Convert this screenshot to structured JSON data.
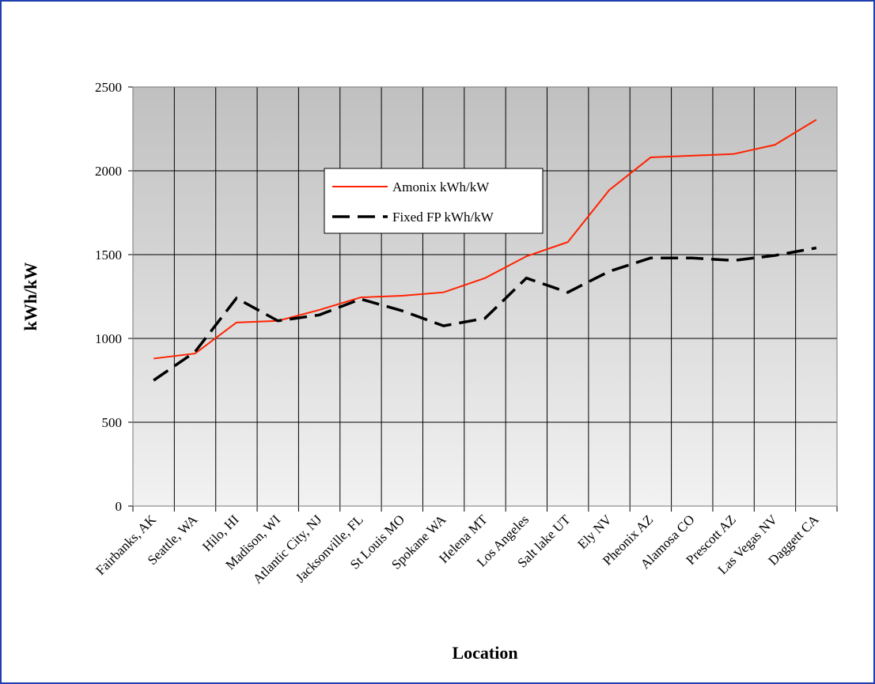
{
  "chart_data": {
    "type": "line",
    "x_label": "Location",
    "y_label": "kWh/kW",
    "categories": [
      "Fairbanks, AK",
      "Seattle, WA",
      "Hilo, HI",
      "Madison, WI",
      "Atlantic City, NJ",
      "Jacksonville, FL",
      "St Louis MO",
      "Spokane WA",
      "Helena MT",
      "Los Angeles",
      "Salt lake UT",
      "Ely NV",
      "Pheonix AZ",
      "Alamosa CO",
      "Prescott AZ",
      "Las Vegas NV",
      "Daggett CA"
    ],
    "series": [
      {
        "name": "Amonix kWh/kW",
        "color": "#ff2200",
        "dash": "solid",
        "values": [
          880,
          910,
          1095,
          1105,
          1170,
          1245,
          1255,
          1275,
          1360,
          1490,
          1575,
          1885,
          2080,
          2090,
          2100,
          2155,
          2305
        ]
      },
      {
        "name": "Fixed FP kWh/kW",
        "color": "#000000",
        "dash": "dashed",
        "values": [
          750,
          920,
          1240,
          1105,
          1140,
          1235,
          1165,
          1075,
          1120,
          1360,
          1275,
          1400,
          1480,
          1480,
          1465,
          1495,
          1540
        ]
      }
    ],
    "ylim": [
      0,
      2500
    ],
    "yticks": [
      0,
      500,
      1000,
      1500,
      2000,
      2500
    ],
    "grid": true
  }
}
